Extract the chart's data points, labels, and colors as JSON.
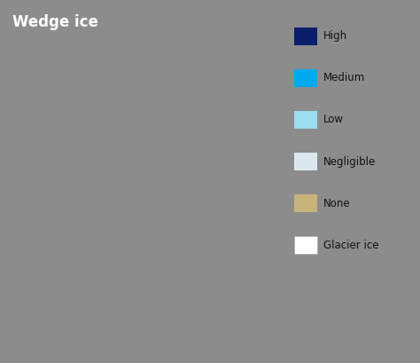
{
  "title": "Wedge ice",
  "title_fontsize": 12,
  "title_color": "white",
  "title_fontweight": "bold",
  "background_color": "#8c8c8c",
  "legend_items": [
    {
      "label": "High",
      "color": "#0a1f6b"
    },
    {
      "label": "Medium",
      "color": "#00aaee"
    },
    {
      "label": "Low",
      "color": "#99ddee"
    },
    {
      "label": "Negligible",
      "color": "#dce8ef"
    },
    {
      "label": "None",
      "color": "#c8b47a"
    },
    {
      "label": "Glacier ice",
      "color": "#ffffff"
    }
  ],
  "map_colors": {
    "high": "#0a1f6b",
    "medium": "#00aaee",
    "low": "#99ddee",
    "negligible": "#dce8ef",
    "none": "#c8b47a",
    "glacier": "#ffffff",
    "background": "#8c8c8c"
  },
  "figsize": [
    4.74,
    4.09
  ],
  "dpi": 100,
  "extent": [
    -145,
    -50,
    41,
    85
  ]
}
